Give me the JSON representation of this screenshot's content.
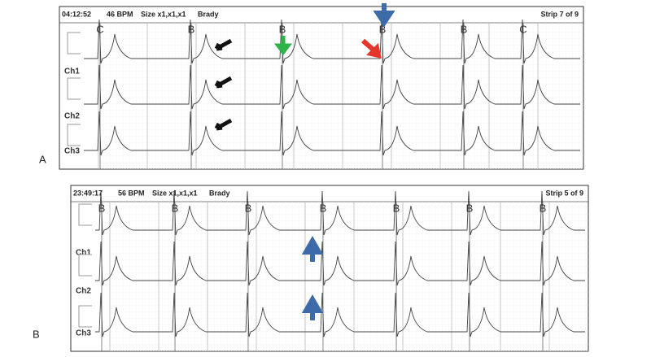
{
  "panels": [
    {
      "label": "A",
      "header": {
        "time": "04:12:52",
        "rate": "46 BPM",
        "size": "Size x1,x1,x1",
        "rhythm": "Brady",
        "strip": "Strip 7 of 9"
      },
      "channels": [
        "Ch1",
        "Ch2",
        "Ch3"
      ],
      "beats": [
        "C",
        "B",
        "B",
        "B",
        "B",
        "C"
      ]
    },
    {
      "label": "B",
      "header": {
        "time": "23:49:17",
        "rate": "56 BPM",
        "size": "Size x1,x1,x1",
        "rhythm": "Brady",
        "strip": "Strip 5 of 9"
      },
      "channels": [
        "Ch1",
        "Ch2",
        "Ch3"
      ],
      "beats": [
        "B",
        "B",
        "B",
        "B",
        "B",
        "B",
        "B"
      ]
    }
  ]
}
